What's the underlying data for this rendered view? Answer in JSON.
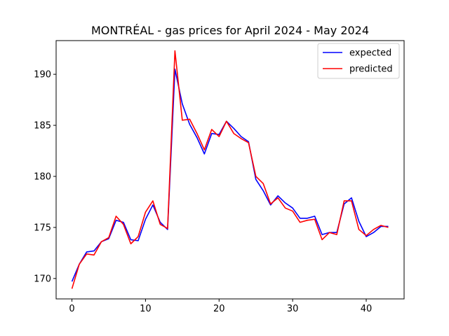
{
  "chart_data": {
    "type": "line",
    "title": "MONTRÉAL - gas prices for April 2024 - May 2024",
    "xlabel": "",
    "ylabel": "",
    "xlim": [
      -2.15,
      45.15
    ],
    "ylim": [
      168.0,
      193.3
    ],
    "xticks": [
      0,
      10,
      20,
      30,
      40
    ],
    "yticks": [
      170,
      175,
      180,
      185,
      190
    ],
    "grid": false,
    "legend_position": "top-right",
    "series": [
      {
        "name": "expected",
        "color": "#0000ff",
        "x": [
          0,
          1,
          2,
          3,
          4,
          5,
          6,
          7,
          8,
          9,
          10,
          11,
          12,
          13,
          14,
          15,
          16,
          17,
          18,
          19,
          20,
          21,
          22,
          23,
          24,
          25,
          26,
          27,
          28,
          29,
          30,
          31,
          32,
          33,
          34,
          35,
          36,
          37,
          38,
          39,
          40,
          41,
          42,
          43
        ],
        "values": [
          169.7,
          171.4,
          172.6,
          172.7,
          173.6,
          173.9,
          175.7,
          175.5,
          173.8,
          173.7,
          175.8,
          177.2,
          175.5,
          174.8,
          190.5,
          187.1,
          185.1,
          183.8,
          182.2,
          184.2,
          184.1,
          185.4,
          184.7,
          183.9,
          183.4,
          179.7,
          178.6,
          177.2,
          178.1,
          177.4,
          176.9,
          175.9,
          175.9,
          176.1,
          174.3,
          174.5,
          174.5,
          177.3,
          177.9,
          175.6,
          174.1,
          174.5,
          175.1,
          175.1
        ]
      },
      {
        "name": "predicted",
        "color": "#ff0000",
        "x": [
          0,
          1,
          2,
          3,
          4,
          5,
          6,
          7,
          8,
          9,
          10,
          11,
          12,
          13,
          14,
          15,
          16,
          17,
          18,
          19,
          20,
          21,
          22,
          23,
          24,
          25,
          26,
          27,
          28,
          29,
          30,
          31,
          32,
          33,
          34,
          35,
          36,
          37,
          38,
          39,
          40,
          41,
          42,
          43
        ],
        "values": [
          169.0,
          171.4,
          172.4,
          172.3,
          173.6,
          174.0,
          176.1,
          175.3,
          173.4,
          174.1,
          176.5,
          177.6,
          175.3,
          174.9,
          192.3,
          185.5,
          185.6,
          184.2,
          182.6,
          184.6,
          183.9,
          185.4,
          184.2,
          183.7,
          183.3,
          180.0,
          179.3,
          177.3,
          177.9,
          176.9,
          176.6,
          175.5,
          175.7,
          175.8,
          173.8,
          174.5,
          174.3,
          177.6,
          177.6,
          174.8,
          174.2,
          174.8,
          175.2,
          175.0
        ]
      }
    ]
  }
}
